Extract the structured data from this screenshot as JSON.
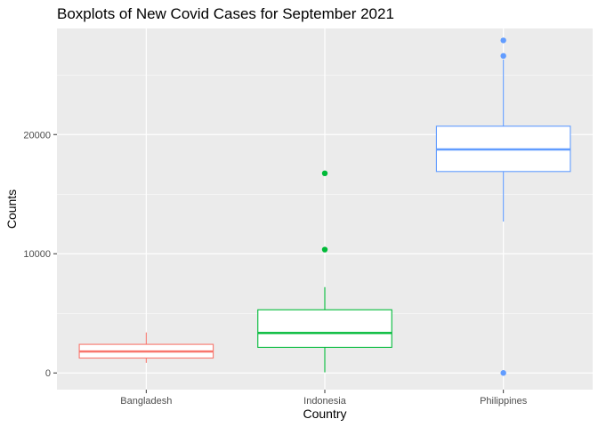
{
  "chart_data": {
    "type": "boxplot",
    "title": "Boxplots of New Covid Cases for September 2021",
    "xlabel": "Country",
    "ylabel": "Counts",
    "categories": [
      "Bangladesh",
      "Indonesia",
      "Philippines"
    ],
    "ylim": [
      -1400,
      28900
    ],
    "yticks": [
      0,
      10000,
      20000
    ],
    "ytick_labels": [
      "0",
      "10000",
      "20000"
    ],
    "grid": true,
    "legend": "none",
    "boxes": [
      {
        "category": "Bangladesh",
        "color": "#F8766D",
        "whisker_low": 850,
        "q1": 1250,
        "median": 1800,
        "q3": 2400,
        "whisker_high": 3400,
        "outliers": []
      },
      {
        "category": "Indonesia",
        "color": "#00BA38",
        "whisker_low": 50,
        "q1": 2150,
        "median": 3350,
        "q3": 5300,
        "whisker_high": 7200,
        "outliers": [
          10350,
          16750
        ]
      },
      {
        "category": "Philippines",
        "color": "#619CFF",
        "whisker_low": 12700,
        "q1": 16900,
        "median": 18750,
        "q3": 20700,
        "whisker_high": 26300,
        "outliers": [
          0,
          26600,
          27900
        ]
      }
    ]
  }
}
